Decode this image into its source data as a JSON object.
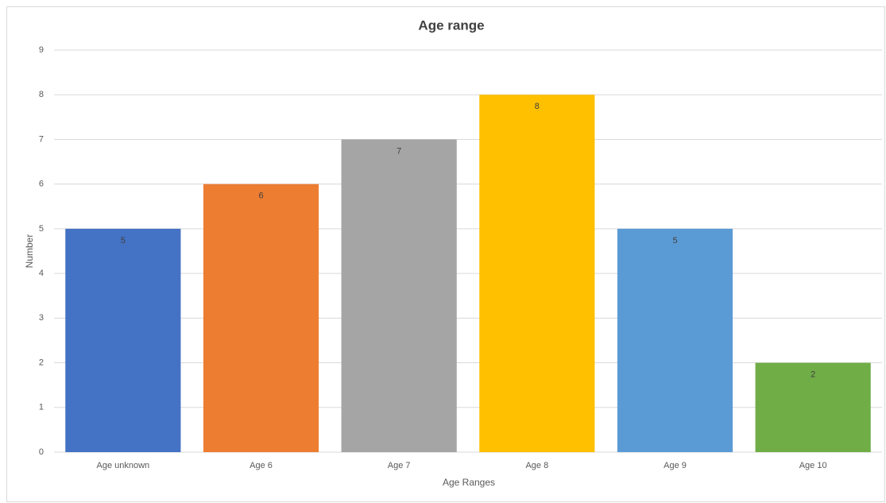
{
  "chart_data": {
    "type": "bar",
    "title": "Age range",
    "categories": [
      "Age unknown",
      "Age 6",
      "Age 7",
      "Age 8",
      "Age 9",
      "Age 10"
    ],
    "values": [
      5,
      6,
      7,
      8,
      5,
      2
    ],
    "colors": [
      "#4472c4",
      "#ed7d31",
      "#a5a5a5",
      "#ffc000",
      "#5b9bd5",
      "#70ad47"
    ],
    "xlabel": "Age Ranges",
    "ylabel": "Number",
    "ylim": [
      0,
      9
    ],
    "yticks": [
      0,
      1,
      2,
      3,
      4,
      5,
      6,
      7,
      8,
      9
    ],
    "grid": true
  }
}
